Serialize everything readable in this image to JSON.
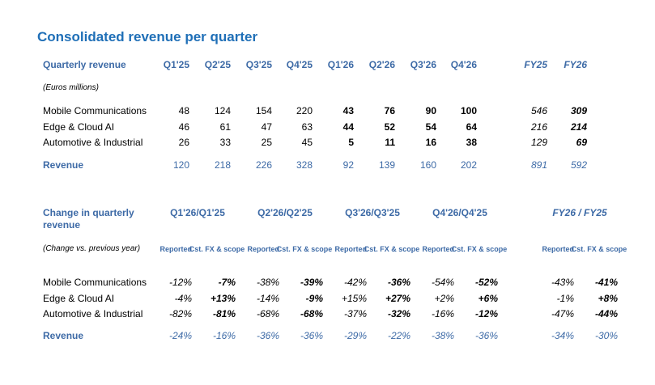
{
  "title": "Consolidated revenue per quarter",
  "table1": {
    "header_label": "Quarterly revenue",
    "subtitle": "(Euros millions)",
    "columns": [
      "Q1'25",
      "Q2'25",
      "Q3'25",
      "Q4'25",
      "Q1'26",
      "Q2'26",
      "Q3'26",
      "Q4'26",
      "FY25",
      "FY26"
    ],
    "rows": [
      {
        "label": "Mobile Communications",
        "values": [
          "48",
          "124",
          "154",
          "220",
          "43",
          "76",
          "90",
          "100",
          "546",
          "309"
        ]
      },
      {
        "label": "Edge & Cloud AI",
        "values": [
          "46",
          "61",
          "47",
          "63",
          "44",
          "52",
          "54",
          "64",
          "216",
          "214"
        ]
      },
      {
        "label": "Automotive & Industrial",
        "values": [
          "26",
          "33",
          "25",
          "45",
          "5",
          "11",
          "16",
          "38",
          "129",
          "69"
        ]
      }
    ],
    "total": {
      "label": "Revenue",
      "values": [
        "120",
        "218",
        "226",
        "328",
        "92",
        "139",
        "160",
        "202",
        "891",
        "592"
      ]
    }
  },
  "table2": {
    "header_label": "Change in quarterly revenue",
    "subtitle": "(Change vs. previous year)",
    "groups": [
      "Q1'26/Q1'25",
      "Q2'26/Q2'25",
      "Q3'26/Q3'25",
      "Q4'26/Q4'25",
      "FY26 / FY25"
    ],
    "subcols": [
      "Reported",
      "Cst. FX & scope"
    ],
    "rows": [
      {
        "label": "Mobile Communications",
        "values": [
          "-12%",
          "-7%",
          "-38%",
          "-39%",
          "-42%",
          "-36%",
          "-54%",
          "-52%",
          "-43%",
          "-41%"
        ]
      },
      {
        "label": "Edge & Cloud AI",
        "values": [
          "-4%",
          "+13%",
          "-14%",
          "-9%",
          "+15%",
          "+27%",
          "+2%",
          "+6%",
          "-1%",
          "+8%"
        ]
      },
      {
        "label": "Automotive & Industrial",
        "values": [
          "-82%",
          "-81%",
          "-68%",
          "-68%",
          "-37%",
          "-32%",
          "-16%",
          "-12%",
          "-47%",
          "-44%"
        ]
      }
    ],
    "total": {
      "label": "Revenue",
      "values": [
        "-24%",
        "-16%",
        "-36%",
        "-36%",
        "-29%",
        "-22%",
        "-38%",
        "-36%",
        "-34%",
        "-30%"
      ]
    }
  }
}
